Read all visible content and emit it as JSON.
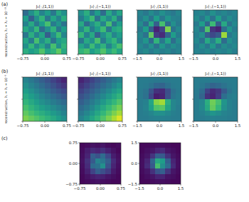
{
  "chart_data": [
    {
      "type": "heatmap",
      "panel_label": "(a)",
      "ylabel": "reconstruction, λ₁ = λ₂ = 10⁻¹⁵",
      "title": "J₁(·,(1,1))",
      "color": "viridis",
      "color_range": [
        0,
        1
      ],
      "tick_labels": "x",
      "xlim": [
        -0.75,
        0.75
      ],
      "ylim": [
        -0.75,
        0.75
      ],
      "xticks": [
        {
          "value": -0.75,
          "label": "−0.75"
        },
        {
          "value": 0,
          "label": "0.00"
        },
        {
          "value": 0.75,
          "label": "0.75"
        }
      ],
      "yticks": [
        {
          "value": -0.75,
          "label": "−0.75"
        },
        {
          "value": 0,
          "label": "0.00"
        },
        {
          "value": 0.75,
          "label": "0.75"
        }
      ],
      "cells": [
        [
          0.35,
          0.5,
          0.62,
          0.45,
          0.55,
          0.4,
          0.6,
          0.5
        ],
        [
          0.55,
          0.3,
          0.5,
          0.65,
          0.4,
          0.58,
          0.45,
          0.62
        ],
        [
          0.45,
          0.6,
          0.4,
          0.55,
          0.7,
          0.42,
          0.52,
          0.38
        ],
        [
          0.6,
          0.48,
          0.66,
          0.35,
          0.5,
          0.64,
          0.4,
          0.55
        ],
        [
          0.4,
          0.62,
          0.45,
          0.58,
          0.3,
          0.5,
          0.68,
          0.46
        ],
        [
          0.58,
          0.42,
          0.7,
          0.5,
          0.62,
          0.38,
          0.55,
          0.6
        ],
        [
          0.5,
          0.66,
          0.48,
          0.6,
          0.45,
          0.7,
          0.5,
          0.65
        ],
        [
          0.62,
          0.55,
          0.6,
          0.72,
          0.58,
          0.65,
          0.75,
          0.6
        ]
      ]
    },
    {
      "type": "heatmap",
      "title": "J₁(·,(−1,1))",
      "color": "viridis",
      "color_range": [
        0,
        1
      ],
      "tick_labels": "x",
      "xlim": [
        -0.75,
        0.75
      ],
      "ylim": [
        -0.75,
        0.75
      ],
      "xticks": [
        {
          "value": -0.75,
          "label": "−0.75"
        },
        {
          "value": 0,
          "label": "0.00"
        },
        {
          "value": 0.75,
          "label": "0.75"
        }
      ],
      "yticks": [
        {
          "value": -0.75,
          "label": "−0.75"
        },
        {
          "value": 0,
          "label": "0.00"
        },
        {
          "value": 0.75,
          "label": "0.75"
        }
      ],
      "cells": [
        [
          0.5,
          0.62,
          0.4,
          0.55,
          0.35,
          0.6,
          0.45,
          0.58
        ],
        [
          0.42,
          0.55,
          0.68,
          0.38,
          0.6,
          0.48,
          0.62,
          0.4
        ],
        [
          0.6,
          0.35,
          0.5,
          0.62,
          0.45,
          0.7,
          0.4,
          0.55
        ],
        [
          0.48,
          0.65,
          0.42,
          0.55,
          0.68,
          0.4,
          0.58,
          0.62
        ],
        [
          0.66,
          0.45,
          0.6,
          0.32,
          0.5,
          0.62,
          0.46,
          0.55
        ],
        [
          0.4,
          0.6,
          0.5,
          0.7,
          0.42,
          0.58,
          0.66,
          0.48
        ],
        [
          0.58,
          0.48,
          0.68,
          0.52,
          0.64,
          0.45,
          0.6,
          0.7
        ],
        [
          0.65,
          0.7,
          0.55,
          0.62,
          0.72,
          0.6,
          0.68,
          0.58
        ]
      ]
    },
    {
      "type": "heatmap",
      "title": "J₂(·,(1,1))",
      "color": "viridis",
      "color_range": [
        0,
        1
      ],
      "tick_labels": "x",
      "xlim": [
        -1.5,
        1.5
      ],
      "ylim": [
        -1.5,
        1.5
      ],
      "xticks": [
        {
          "value": -1.5,
          "label": "−1.5"
        },
        {
          "value": 0,
          "label": "0.0"
        },
        1.5
      ],
      "yticks": [
        {
          "value": -1.5,
          "label": "−1.5"
        },
        {
          "value": 0,
          "label": "0.0"
        },
        1.5
      ],
      "cells": [
        [
          0.45,
          0.4,
          0.48,
          0.42,
          0.5,
          0.44,
          0.4,
          0.46
        ],
        [
          0.42,
          0.5,
          0.38,
          0.55,
          0.4,
          0.52,
          0.45,
          0.43
        ],
        [
          0.48,
          0.36,
          0.6,
          0.3,
          0.7,
          0.35,
          0.5,
          0.41
        ],
        [
          0.4,
          0.55,
          0.3,
          0.1,
          0.2,
          0.8,
          0.38,
          0.47
        ],
        [
          0.46,
          0.38,
          0.75,
          0.18,
          0.12,
          0.32,
          0.55,
          0.42
        ],
        [
          0.43,
          0.52,
          0.35,
          0.65,
          0.4,
          0.58,
          0.36,
          0.48
        ],
        [
          0.47,
          0.41,
          0.5,
          0.38,
          0.52,
          0.42,
          0.49,
          0.44
        ],
        [
          0.44,
          0.48,
          0.42,
          0.47,
          0.43,
          0.46,
          0.41,
          0.45
        ]
      ]
    },
    {
      "type": "heatmap",
      "title": "J₂(·,(−1,1))",
      "color": "viridis",
      "color_range": [
        0,
        1
      ],
      "tick_labels": "x",
      "xlim": [
        -1.5,
        1.5
      ],
      "ylim": [
        -1.5,
        1.5
      ],
      "xticks": [
        {
          "value": -1.5,
          "label": "−1.5"
        },
        {
          "value": 0,
          "label": "0.0"
        },
        1.5
      ],
      "yticks": [
        {
          "value": -1.5,
          "label": "−1.5"
        },
        {
          "value": 0,
          "label": "0.0"
        },
        1.5
      ],
      "cells": [
        [
          0.44,
          0.47,
          0.41,
          0.5,
          0.43,
          0.46,
          0.42,
          0.45
        ],
        [
          0.48,
          0.4,
          0.52,
          0.38,
          0.56,
          0.41,
          0.49,
          0.43
        ],
        [
          0.41,
          0.55,
          0.33,
          0.68,
          0.3,
          0.6,
          0.38,
          0.47
        ],
        [
          0.46,
          0.35,
          0.72,
          0.15,
          0.1,
          0.36,
          0.52,
          0.42
        ],
        [
          0.43,
          0.5,
          0.3,
          0.22,
          0.28,
          0.85,
          0.4,
          0.46
        ],
        [
          0.47,
          0.38,
          0.6,
          0.45,
          0.62,
          0.35,
          0.5,
          0.44
        ],
        [
          0.42,
          0.49,
          0.4,
          0.53,
          0.39,
          0.48,
          0.43,
          0.47
        ],
        [
          0.45,
          0.43,
          0.47,
          0.42,
          0.46,
          0.44,
          0.48,
          0.43
        ]
      ]
    },
    {
      "type": "heatmap",
      "panel_label": "(b)",
      "ylabel": "reconstruction, λ₁ = λ₂ = 10⁻⁵",
      "title": "J₁(·,(1,1))",
      "color": "viridis",
      "color_range": [
        0,
        1
      ],
      "tick_labels": "x",
      "xlim": [
        -0.75,
        0.75
      ],
      "ylim": [
        -0.75,
        0.75
      ],
      "xticks": [
        {
          "value": -0.75,
          "label": "−0.75"
        },
        {
          "value": 0,
          "label": "0.00"
        },
        {
          "value": 0.75,
          "label": "0.75"
        }
      ],
      "yticks": [
        {
          "value": -0.75,
          "label": "−0.75"
        },
        {
          "value": 0,
          "label": "0.00"
        },
        {
          "value": 0.75,
          "label": "0.75"
        }
      ],
      "cells": [
        [
          0.45,
          0.4,
          0.35,
          0.3,
          0.25,
          0.2,
          0.15,
          0.1
        ],
        [
          0.5,
          0.45,
          0.4,
          0.35,
          0.3,
          0.25,
          0.2,
          0.16
        ],
        [
          0.55,
          0.5,
          0.45,
          0.4,
          0.35,
          0.3,
          0.26,
          0.22
        ],
        [
          0.6,
          0.55,
          0.5,
          0.45,
          0.4,
          0.36,
          0.32,
          0.28
        ],
        [
          0.65,
          0.6,
          0.55,
          0.5,
          0.46,
          0.42,
          0.38,
          0.34
        ],
        [
          0.7,
          0.65,
          0.6,
          0.56,
          0.52,
          0.48,
          0.44,
          0.4
        ],
        [
          0.75,
          0.7,
          0.66,
          0.62,
          0.58,
          0.54,
          0.5,
          0.45
        ],
        [
          0.8,
          0.76,
          0.72,
          0.68,
          0.64,
          0.6,
          0.55,
          0.5
        ]
      ]
    },
    {
      "type": "heatmap",
      "title": "J₁(·,(−1,1))",
      "color": "viridis",
      "color_range": [
        0,
        1
      ],
      "tick_labels": "x",
      "xlim": [
        -0.75,
        0.75
      ],
      "ylim": [
        -0.75,
        0.75
      ],
      "xticks": [
        {
          "value": -0.75,
          "label": "−0.75"
        },
        {
          "value": 0,
          "label": "0.00"
        },
        {
          "value": 0.75,
          "label": "0.75"
        }
      ],
      "yticks": [
        {
          "value": -0.75,
          "label": "−0.75"
        },
        {
          "value": 0,
          "label": "0.00"
        },
        {
          "value": 0.75,
          "label": "0.75"
        }
      ],
      "cells": [
        [
          0.1,
          0.15,
          0.2,
          0.25,
          0.3,
          0.35,
          0.4,
          0.45
        ],
        [
          0.15,
          0.2,
          0.25,
          0.3,
          0.35,
          0.4,
          0.46,
          0.52
        ],
        [
          0.2,
          0.25,
          0.3,
          0.35,
          0.41,
          0.47,
          0.53,
          0.58
        ],
        [
          0.25,
          0.3,
          0.35,
          0.41,
          0.47,
          0.53,
          0.59,
          0.65
        ],
        [
          0.3,
          0.35,
          0.41,
          0.47,
          0.53,
          0.6,
          0.66,
          0.72
        ],
        [
          0.35,
          0.4,
          0.46,
          0.53,
          0.6,
          0.67,
          0.73,
          0.79
        ],
        [
          0.4,
          0.46,
          0.52,
          0.59,
          0.66,
          0.73,
          0.8,
          0.86
        ],
        [
          0.45,
          0.51,
          0.58,
          0.65,
          0.72,
          0.8,
          0.87,
          0.95
        ]
      ]
    },
    {
      "type": "heatmap",
      "title": "J₂(·,(1,1))",
      "color": "viridis",
      "color_range": [
        0,
        1
      ],
      "tick_labels": "x",
      "xlim": [
        -1.5,
        1.5
      ],
      "ylim": [
        -1.5,
        1.5
      ],
      "xticks": [
        {
          "value": -1.5,
          "label": "−1.5"
        },
        {
          "value": 0,
          "label": "0.0"
        },
        1.5
      ],
      "yticks": [
        {
          "value": -1.5,
          "label": "−1.5"
        },
        {
          "value": 0,
          "label": "0.0"
        },
        1.5
      ],
      "cells": [
        [
          0.42,
          0.42,
          0.41,
          0.4,
          0.4,
          0.41,
          0.42,
          0.42
        ],
        [
          0.42,
          0.41,
          0.38,
          0.33,
          0.32,
          0.37,
          0.41,
          0.42
        ],
        [
          0.41,
          0.38,
          0.26,
          0.14,
          0.12,
          0.24,
          0.37,
          0.41
        ],
        [
          0.41,
          0.37,
          0.22,
          0.08,
          0.1,
          0.25,
          0.39,
          0.42
        ],
        [
          0.42,
          0.44,
          0.58,
          0.82,
          0.86,
          0.62,
          0.46,
          0.43
        ],
        [
          0.42,
          0.45,
          0.56,
          0.72,
          0.74,
          0.58,
          0.46,
          0.42
        ],
        [
          0.42,
          0.43,
          0.46,
          0.5,
          0.5,
          0.47,
          0.43,
          0.42
        ],
        [
          0.42,
          0.42,
          0.43,
          0.44,
          0.44,
          0.43,
          0.42,
          0.42
        ]
      ]
    },
    {
      "type": "heatmap",
      "title": "J₂(·,(−1,1))",
      "color": "viridis",
      "color_range": [
        0,
        1
      ],
      "tick_labels": "x",
      "xlim": [
        -1.5,
        1.5
      ],
      "ylim": [
        -1.5,
        1.5
      ],
      "xticks": [
        {
          "value": -1.5,
          "label": "−1.5"
        },
        {
          "value": 0,
          "label": "0.0"
        },
        1.5
      ],
      "yticks": [
        {
          "value": -1.5,
          "label": "−1.5"
        },
        {
          "value": 0,
          "label": "0.0"
        },
        1.5
      ],
      "cells": [
        [
          0.42,
          0.42,
          0.42,
          0.41,
          0.41,
          0.42,
          0.42,
          0.42
        ],
        [
          0.42,
          0.4,
          0.36,
          0.32,
          0.34,
          0.38,
          0.41,
          0.42
        ],
        [
          0.41,
          0.35,
          0.2,
          0.12,
          0.16,
          0.28,
          0.38,
          0.42
        ],
        [
          0.4,
          0.32,
          0.14,
          0.1,
          0.18,
          0.36,
          0.42,
          0.43
        ],
        [
          0.42,
          0.46,
          0.62,
          0.78,
          0.7,
          0.52,
          0.44,
          0.42
        ],
        [
          0.42,
          0.47,
          0.6,
          0.76,
          0.66,
          0.5,
          0.44,
          0.42
        ],
        [
          0.42,
          0.44,
          0.48,
          0.52,
          0.49,
          0.45,
          0.43,
          0.42
        ],
        [
          0.42,
          0.42,
          0.43,
          0.44,
          0.43,
          0.43,
          0.42,
          0.42
        ]
      ]
    },
    {
      "type": "heatmap",
      "panel_label": "(c)",
      "color": "viridis",
      "color_range": [
        0,
        1
      ],
      "tick_labels": true,
      "xlim": [
        -0.75,
        0.75
      ],
      "ylim": [
        -0.75,
        0.75
      ],
      "xticks": [
        {
          "value": -0.75,
          "label": "−0.75"
        },
        {
          "value": 0,
          "label": "0.00"
        },
        {
          "value": 0.75,
          "label": "0.75"
        }
      ],
      "yticks": [
        {
          "value": -0.75,
          "label": "−0.75"
        },
        {
          "value": 0,
          "label": "0.00"
        },
        {
          "value": 0.75,
          "label": "0.75"
        }
      ],
      "cells": [
        [
          0.02,
          0.03,
          0.05,
          0.04,
          0.06,
          0.03,
          0.02,
          0.03
        ],
        [
          0.03,
          0.08,
          0.12,
          0.1,
          0.14,
          0.09,
          0.05,
          0.02
        ],
        [
          0.04,
          0.1,
          0.3,
          0.25,
          0.35,
          0.22,
          0.08,
          0.04
        ],
        [
          0.05,
          0.14,
          0.28,
          0.45,
          0.4,
          0.3,
          0.12,
          0.05
        ],
        [
          0.04,
          0.12,
          0.35,
          0.38,
          0.5,
          0.26,
          0.1,
          0.04
        ],
        [
          0.03,
          0.09,
          0.2,
          0.3,
          0.24,
          0.18,
          0.07,
          0.03
        ],
        [
          0.02,
          0.05,
          0.08,
          0.1,
          0.09,
          0.06,
          0.04,
          0.02
        ],
        [
          0.02,
          0.03,
          0.04,
          0.05,
          0.04,
          0.03,
          0.02,
          0.02
        ]
      ]
    },
    {
      "type": "heatmap",
      "color": "viridis",
      "color_range": [
        0,
        1
      ],
      "tick_labels": true,
      "xlim": [
        -1.5,
        1.5
      ],
      "ylim": [
        -1.5,
        1.5
      ],
      "xticks": [
        {
          "value": -1.5,
          "label": "−1.5"
        },
        {
          "value": 0,
          "label": "0.0"
        },
        1.5
      ],
      "yticks": [
        {
          "value": -1.5,
          "label": "−1.5"
        },
        {
          "value": 0,
          "label": "0.0"
        },
        1.5
      ],
      "cells": [
        [
          0.02,
          0.02,
          0.03,
          0.04,
          0.04,
          0.03,
          0.02,
          0.02
        ],
        [
          0.02,
          0.04,
          0.06,
          0.1,
          0.12,
          0.06,
          0.04,
          0.02
        ],
        [
          0.03,
          0.06,
          0.15,
          0.3,
          0.28,
          0.14,
          0.06,
          0.03
        ],
        [
          0.04,
          0.1,
          0.32,
          0.6,
          0.55,
          0.3,
          0.1,
          0.04
        ],
        [
          0.04,
          0.12,
          0.28,
          0.7,
          0.5,
          0.35,
          0.12,
          0.04
        ],
        [
          0.03,
          0.06,
          0.14,
          0.26,
          0.3,
          0.15,
          0.06,
          0.03
        ],
        [
          0.02,
          0.04,
          0.06,
          0.1,
          0.1,
          0.05,
          0.04,
          0.02
        ],
        [
          0.02,
          0.02,
          0.03,
          0.04,
          0.04,
          0.03,
          0.02,
          0.02
        ]
      ]
    }
  ]
}
